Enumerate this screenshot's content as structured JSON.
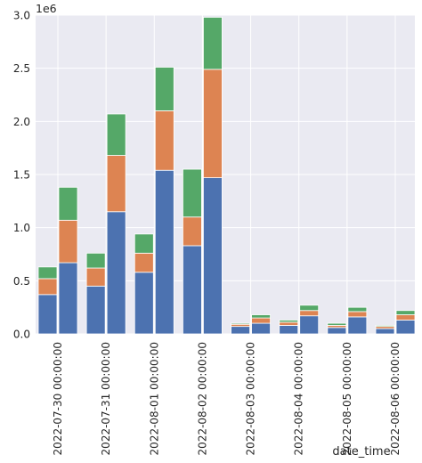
{
  "chart_data": {
    "type": "bar",
    "stacked": true,
    "xlabel": "date_time",
    "ylabel": "",
    "y_scale_label": "1e6",
    "ylim": [
      0,
      3000000
    ],
    "yticks": [
      0.0,
      0.5,
      1.0,
      1.5,
      2.0,
      2.5,
      3.0
    ],
    "ytick_labels": [
      "0.0",
      "0.5",
      "1.0",
      "1.5",
      "2.0",
      "2.5",
      "3.0"
    ],
    "grid": true,
    "background": "#eaeaf2",
    "colors": [
      "#4c72b0",
      "#dd8452",
      "#55a868"
    ],
    "categories": [
      "2022-07-30 00:00:00",
      "2022-07-31 00:00:00",
      "2022-08-01 00:00:00",
      "2022-08-02 00:00:00",
      "2022-08-03 00:00:00",
      "2022-08-04 00:00:00",
      "2022-08-05 00:00:00",
      "2022-08-06 00:00:00"
    ],
    "bars_per_category": 2,
    "series": [
      {
        "color": "#4c72b0",
        "values": [
          [
            370000,
            670000
          ],
          [
            450000,
            1150000
          ],
          [
            580000,
            1540000
          ],
          [
            830000,
            1470000
          ],
          [
            70000,
            100000
          ],
          [
            80000,
            170000
          ],
          [
            60000,
            160000
          ],
          [
            50000,
            130000
          ]
        ]
      },
      {
        "color": "#dd8452",
        "values": [
          [
            150000,
            400000
          ],
          [
            170000,
            530000
          ],
          [
            180000,
            560000
          ],
          [
            270000,
            1020000
          ],
          [
            20000,
            50000
          ],
          [
            30000,
            50000
          ],
          [
            20000,
            50000
          ],
          [
            20000,
            50000
          ]
        ]
      },
      {
        "color": "#55a868",
        "values": [
          [
            110000,
            310000
          ],
          [
            140000,
            390000
          ],
          [
            180000,
            410000
          ],
          [
            450000,
            490000
          ],
          [
            10000,
            30000
          ],
          [
            20000,
            50000
          ],
          [
            20000,
            40000
          ],
          [
            10000,
            40000
          ]
        ]
      }
    ]
  }
}
